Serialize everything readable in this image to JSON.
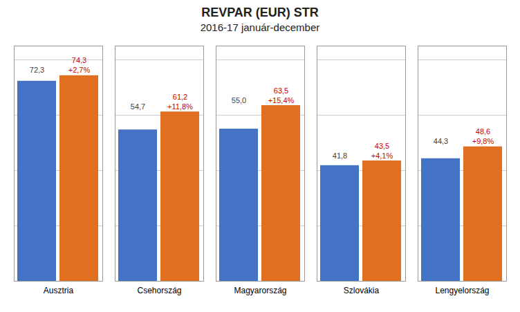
{
  "chart_data": {
    "type": "bar",
    "title": "REVPAR (EUR) STR",
    "subtitle": "2016-17 január-december",
    "categories": [
      "Ausztria",
      "Csehország",
      "Magyarország",
      "Szlovákia",
      "Lengyelország"
    ],
    "series": [
      {
        "color": "#4472C4",
        "values": [
          72.3,
          54.7,
          55.0,
          41.8,
          44.3
        ],
        "value_labels": [
          "72,3",
          "54,7",
          "55,0",
          "41,8",
          "44,3"
        ]
      },
      {
        "color": "#E07020",
        "values": [
          74.3,
          61.2,
          63.5,
          43.5,
          48.6
        ],
        "value_labels": [
          "74,3",
          "61,2",
          "63,5",
          "43,5",
          "48,6"
        ],
        "change_labels": [
          "+2,7%",
          "+11,8%",
          "+15,4%",
          "+4,1%",
          "+9,8%"
        ]
      }
    ],
    "ylim": [
      0,
      85
    ],
    "yticks": [
      0,
      20,
      40,
      60,
      80
    ],
    "grid": true,
    "data_labels": true,
    "tick_labels": "x"
  }
}
